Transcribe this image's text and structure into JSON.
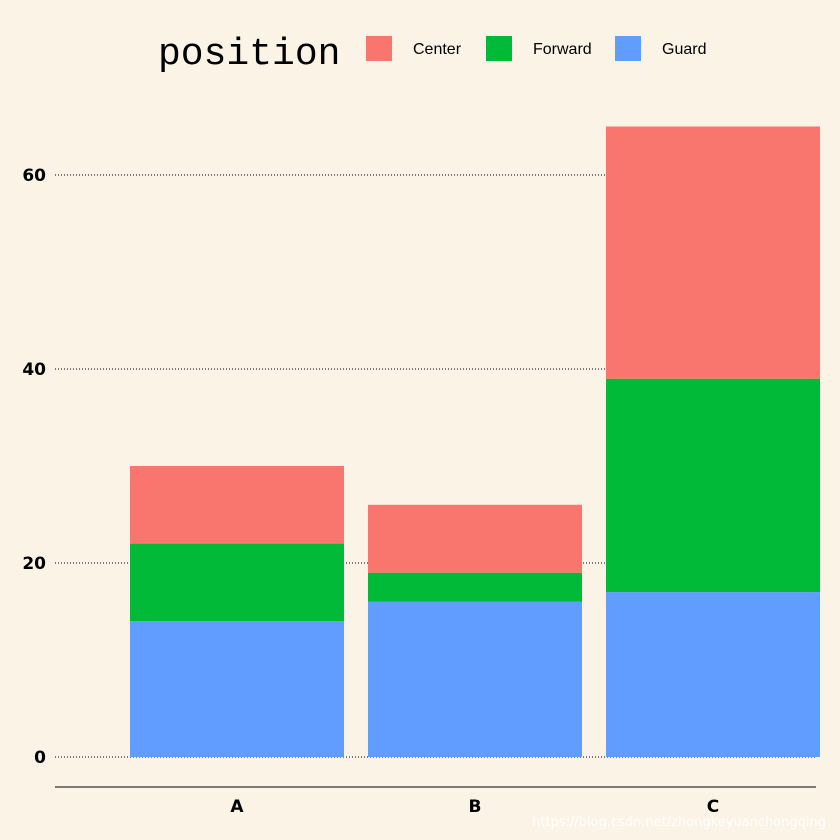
{
  "chart_data": {
    "type": "bar",
    "stacked": true,
    "categories": [
      "A",
      "B",
      "C"
    ],
    "series": [
      {
        "name": "Guard",
        "values": [
          14,
          16,
          17
        ],
        "color": "#619cff"
      },
      {
        "name": "Forward",
        "values": [
          8,
          3,
          22
        ],
        "color": "#00ba38"
      },
      {
        "name": "Center",
        "values": [
          8,
          7,
          26
        ],
        "color": "#f8766d"
      }
    ],
    "legend": {
      "title": "position",
      "position": "top",
      "order": [
        "Center",
        "Forward",
        "Guard"
      ]
    },
    "yticks": [
      0,
      20,
      40,
      60
    ],
    "ylim": [
      0,
      65
    ],
    "grid": "horizontal-dotted",
    "background": "#faf3e6",
    "title": "",
    "xlabel": "",
    "ylabel": ""
  },
  "watermark": "https://blog.csdn.net/zhongkeyuanchongqing"
}
